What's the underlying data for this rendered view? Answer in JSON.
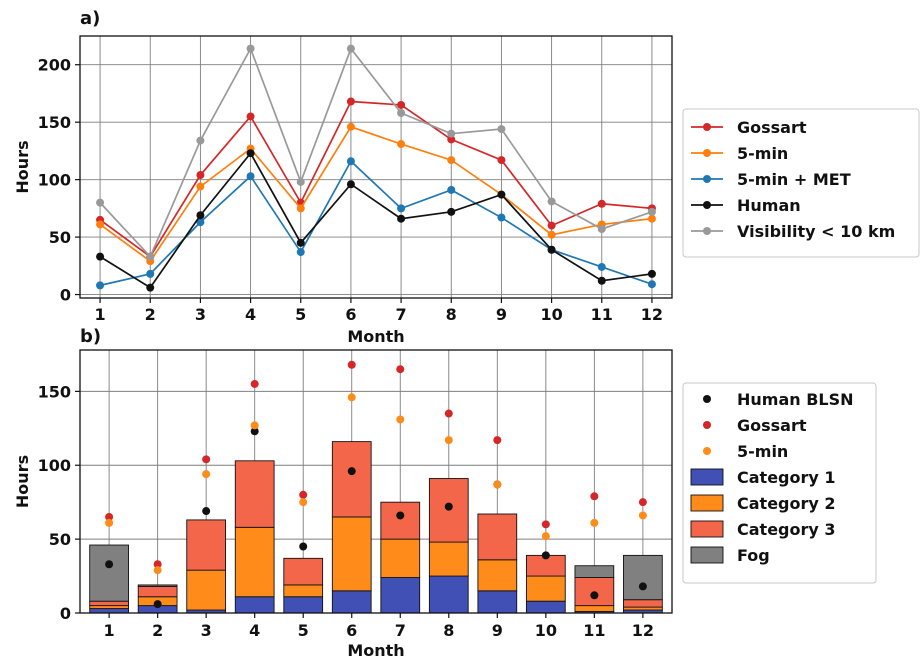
{
  "chart_data": [
    {
      "type": "line",
      "title": "a)",
      "xlabel": "Month",
      "ylabel": "Hours",
      "categories": [
        "1",
        "2",
        "3",
        "4",
        "5",
        "6",
        "7",
        "8",
        "9",
        "10",
        "11",
        "12"
      ],
      "x": [
        1,
        2,
        3,
        4,
        5,
        6,
        7,
        8,
        9,
        10,
        11,
        12
      ],
      "xlim": [
        0.6,
        12.4
      ],
      "ylim": [
        -3,
        225
      ],
      "yticks": [
        0,
        50,
        100,
        150,
        200
      ],
      "grid": true,
      "legend": "right",
      "series": [
        {
          "name": "Gossart",
          "color": "#d62728",
          "values": [
            65,
            33,
            104,
            155,
            80,
            168,
            165,
            135,
            117,
            60,
            79,
            75
          ]
        },
        {
          "name": "5-min",
          "color": "#ff7f0e",
          "values": [
            61,
            29,
            94,
            127,
            75,
            146,
            131,
            117,
            87,
            52,
            61,
            66
          ]
        },
        {
          "name": "5-min + MET",
          "color": "#1f77b4",
          "values": [
            8,
            18,
            63,
            103,
            37,
            116,
            75,
            91,
            67,
            39,
            24,
            9
          ]
        },
        {
          "name": "Human",
          "color": "#111111",
          "values": [
            33,
            6,
            69,
            123,
            45,
            96,
            66,
            72,
            87,
            39,
            12,
            18
          ]
        },
        {
          "name": "Visibility < 10 km",
          "color": "#999999",
          "values": [
            80,
            33,
            134,
            214,
            98,
            214,
            158,
            140,
            144,
            81,
            57,
            72
          ]
        }
      ]
    },
    {
      "type": "bar",
      "stacked": true,
      "title": "b)",
      "xlabel": "Month",
      "ylabel": "Hours",
      "categories": [
        "1",
        "2",
        "3",
        "4",
        "5",
        "6",
        "7",
        "8",
        "9",
        "10",
        "11",
        "12"
      ],
      "x": [
        1,
        2,
        3,
        4,
        5,
        6,
        7,
        8,
        9,
        10,
        11,
        12
      ],
      "xlim": [
        0.4,
        12.6
      ],
      "ylim": [
        0,
        178
      ],
      "yticks": [
        0,
        50,
        100,
        150
      ],
      "grid": true,
      "legend": "right",
      "series": [
        {
          "name": "Category 1",
          "color": "#4050b5",
          "values": [
            3,
            5,
            2,
            11,
            11,
            15,
            24,
            25,
            15,
            8,
            1,
            2
          ]
        },
        {
          "name": "Category 2",
          "color": "#ff8c1a",
          "values": [
            2,
            6,
            27,
            47,
            8,
            50,
            26,
            23,
            21,
            17,
            4,
            2
          ]
        },
        {
          "name": "Category 3",
          "color": "#f4664a",
          "values": [
            3,
            7,
            34,
            45,
            18,
            51,
            25,
            43,
            31,
            14,
            19,
            5
          ]
        },
        {
          "name": "Fog",
          "color": "#808080",
          "values": [
            38,
            1,
            0,
            0,
            0,
            0,
            0,
            0,
            0,
            0,
            8,
            30
          ]
        }
      ],
      "points": [
        {
          "name": "Human BLSN",
          "color": "#111111",
          "values": [
            33,
            6,
            69,
            123,
            45,
            96,
            66,
            72,
            87,
            39,
            12,
            18
          ]
        },
        {
          "name": "Gossart",
          "color": "#d62728",
          "values": [
            65,
            33,
            104,
            155,
            80,
            168,
            165,
            135,
            117,
            60,
            79,
            75
          ]
        },
        {
          "name": "5-min",
          "color": "#ff8c1a",
          "values": [
            61,
            29,
            94,
            127,
            75,
            146,
            131,
            117,
            87,
            52,
            61,
            66
          ]
        }
      ]
    }
  ]
}
